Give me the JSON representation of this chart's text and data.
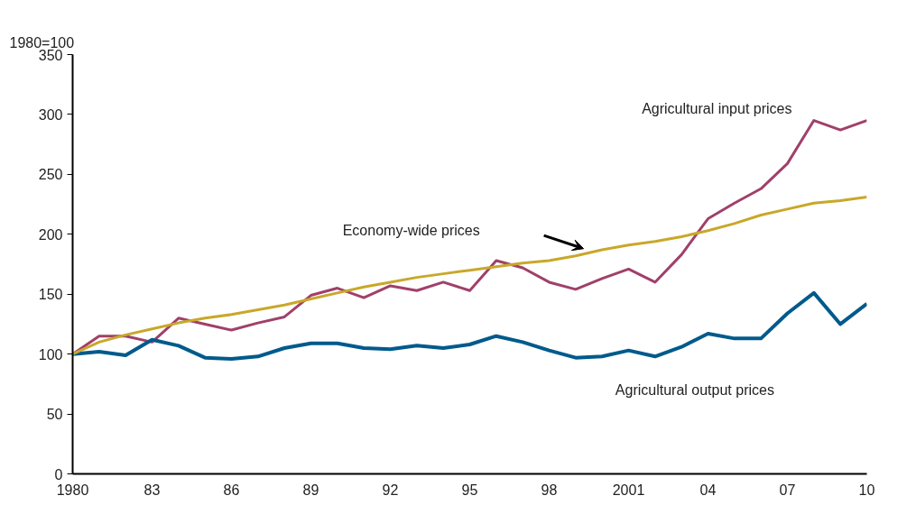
{
  "chart_data": {
    "type": "line",
    "ylabel": "1980=100",
    "x": [
      1980,
      1981,
      1982,
      1983,
      1984,
      1985,
      1986,
      1987,
      1988,
      1989,
      1990,
      1991,
      1992,
      1993,
      1994,
      1995,
      1996,
      1997,
      1998,
      1999,
      2000,
      2001,
      2002,
      2003,
      2004,
      2005,
      2006,
      2007,
      2008,
      2009,
      2010
    ],
    "series": [
      {
        "name": "Agricultural input prices",
        "color": "#a0406a",
        "values": [
          100,
          115,
          115,
          110,
          130,
          125,
          120,
          126,
          131,
          149,
          155,
          147,
          157,
          153,
          160,
          153,
          178,
          172,
          160,
          154,
          163,
          171,
          160,
          183,
          213,
          226,
          238,
          259,
          295,
          287,
          295
        ]
      },
      {
        "name": "Agricultural output prices",
        "color": "#005a8c",
        "values": [
          100,
          102,
          99,
          112,
          107,
          97,
          96,
          98,
          105,
          109,
          109,
          105,
          104,
          107,
          105,
          108,
          115,
          110,
          103,
          97,
          98,
          103,
          98,
          106,
          117,
          113,
          113,
          134,
          151,
          125,
          142
        ]
      },
      {
        "name": "Economy-wide prices",
        "color": "#c8a82a",
        "values": [
          100,
          110,
          116,
          121,
          126,
          130,
          133,
          137,
          141,
          146,
          151,
          156,
          160,
          164,
          167,
          170,
          173,
          176,
          178,
          182,
          187,
          191,
          194,
          198,
          203,
          209,
          216,
          221,
          226,
          228,
          231
        ]
      }
    ],
    "xlim": [
      1980,
      2010
    ],
    "ylim": [
      0,
      350
    ],
    "xticks": [
      {
        "value": 1980,
        "label": "1980"
      },
      {
        "value": 1983,
        "label": "83"
      },
      {
        "value": 1986,
        "label": "86"
      },
      {
        "value": 1989,
        "label": "89"
      },
      {
        "value": 1992,
        "label": "92"
      },
      {
        "value": 1995,
        "label": "95"
      },
      {
        "value": 1998,
        "label": "98"
      },
      {
        "value": 2001,
        "label": "2001"
      },
      {
        "value": 2004,
        "label": "04"
      },
      {
        "value": 2007,
        "label": "07"
      },
      {
        "value": 2010,
        "label": "10"
      }
    ],
    "yticks": [
      0,
      50,
      100,
      150,
      200,
      250,
      300,
      350
    ],
    "grid": false,
    "legend": false
  }
}
